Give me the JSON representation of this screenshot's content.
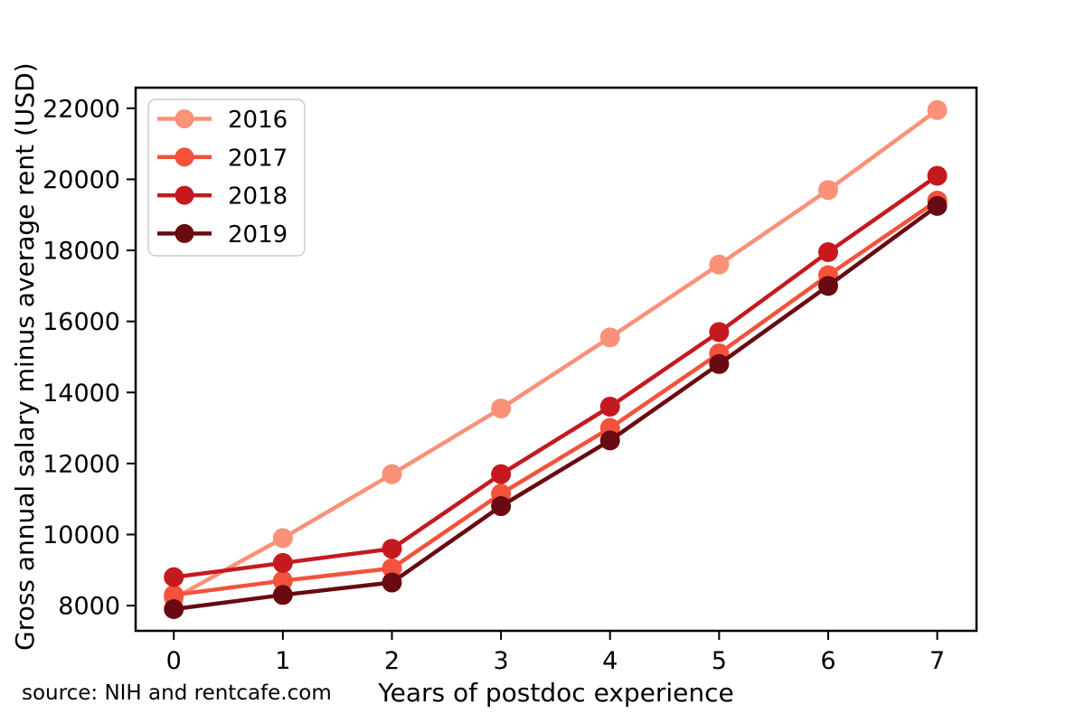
{
  "figure": {
    "source_note": "source: NIH and rentcafe.com"
  },
  "chart_data": {
    "type": "line",
    "title": "",
    "xlabel": "Years of postdoc experience",
    "ylabel": "Gross annual salary minus average rent (USD)",
    "x": [
      0,
      1,
      2,
      3,
      4,
      5,
      6,
      7
    ],
    "xticks": [
      0,
      1,
      2,
      3,
      4,
      5,
      6,
      7
    ],
    "yticks": [
      8000,
      10000,
      12000,
      14000,
      16000,
      18000,
      20000,
      22000
    ],
    "xlim": [
      -0.35,
      7.36
    ],
    "ylim": [
      7290,
      22580
    ],
    "grid": false,
    "legend_position": "upper left",
    "marker": "circle",
    "series": [
      {
        "name": "2016",
        "color": "#fa9178",
        "values": [
          8200,
          9900,
          11700,
          13550,
          15550,
          17600,
          19700,
          21950
        ]
      },
      {
        "name": "2017",
        "color": "#f3523c",
        "values": [
          8300,
          8700,
          9050,
          11150,
          13000,
          15100,
          17300,
          19400
        ]
      },
      {
        "name": "2018",
        "color": "#c41a1f",
        "values": [
          8800,
          9200,
          9600,
          11700,
          13600,
          15700,
          17950,
          20100
        ]
      },
      {
        "name": "2019",
        "color": "#690911",
        "values": [
          7900,
          8300,
          8650,
          10800,
          12650,
          14800,
          17000,
          19250
        ]
      }
    ]
  }
}
